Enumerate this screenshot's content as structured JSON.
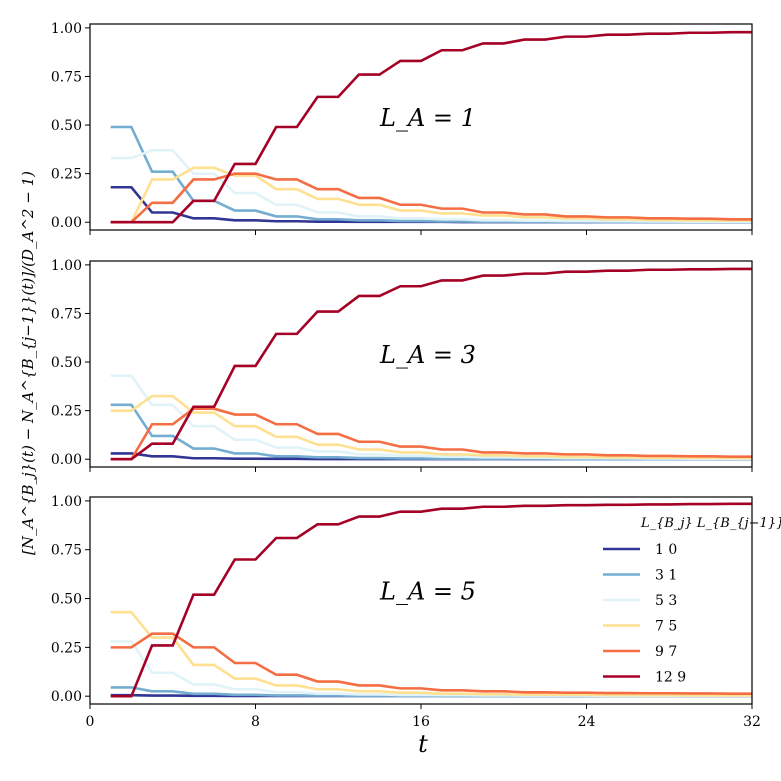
{
  "figure": {
    "xlabel": "t",
    "ylabel": "[N_A^{B_j}(t) − N_A^{B_{j−1}}(t)]/(D_A^2 − 1)",
    "legend_title": "L_{B_j}  L_{B_{j−1}}"
  },
  "colors": {
    "1-0": "#313695",
    "3-1": "#74add1",
    "5-3": "#e0f3f8",
    "7-5": "#fee090",
    "9-7": "#f46d43",
    "12-9": "#a50026"
  },
  "chart_data": [
    {
      "type": "line",
      "annotation": "L_A = 1",
      "xlim": [
        0,
        32
      ],
      "ylim": [
        -0.04,
        1.02
      ],
      "xticks": [
        "0",
        "8",
        "16",
        "24",
        "32"
      ],
      "yticks": [
        "0.00",
        "0.25",
        "0.50",
        "0.75",
        "1.00"
      ],
      "x": [
        1,
        2,
        3,
        4,
        5,
        6,
        7,
        8,
        9,
        10,
        11,
        12,
        13,
        14,
        15,
        16,
        17,
        18,
        19,
        20,
        21,
        22,
        23,
        24,
        25,
        26,
        27,
        28,
        29,
        30,
        31,
        32
      ],
      "series": [
        {
          "name": "1 0",
          "key": "1-0",
          "values": [
            0.18,
            0.18,
            0.05,
            0.05,
            0.02,
            0.02,
            0.01,
            0.01,
            0.005,
            0.005,
            0.003,
            0.003,
            0.002,
            0.002,
            0.002,
            0.002,
            0.002,
            0.001,
            0.001,
            0.001,
            0.001,
            0.001,
            0.001,
            0.001,
            0.001,
            0.001,
            0.001,
            0.001,
            0.001,
            0.001,
            0.001,
            0.001
          ]
        },
        {
          "name": "3 1",
          "key": "3-1",
          "values": [
            0.49,
            0.49,
            0.26,
            0.26,
            0.11,
            0.11,
            0.06,
            0.06,
            0.03,
            0.03,
            0.015,
            0.015,
            0.01,
            0.01,
            0.006,
            0.006,
            0.004,
            0.004,
            0.003,
            0.003,
            0.002,
            0.002,
            0.002,
            0.002,
            0.001,
            0.001,
            0.001,
            0.001,
            0.001,
            0.001,
            0.001,
            0.001
          ]
        },
        {
          "name": "5 3",
          "key": "5-3",
          "values": [
            0.33,
            0.33,
            0.37,
            0.37,
            0.25,
            0.25,
            0.15,
            0.15,
            0.09,
            0.09,
            0.05,
            0.05,
            0.03,
            0.03,
            0.02,
            0.02,
            0.015,
            0.015,
            0.01,
            0.01,
            0.008,
            0.008,
            0.006,
            0.006,
            0.005,
            0.005,
            0.004,
            0.004,
            0.003,
            0.003,
            0.003,
            0.003
          ]
        },
        {
          "name": "7 5",
          "key": "7-5",
          "values": [
            0.0,
            0.0,
            0.22,
            0.22,
            0.28,
            0.28,
            0.24,
            0.24,
            0.17,
            0.17,
            0.12,
            0.12,
            0.09,
            0.09,
            0.06,
            0.06,
            0.045,
            0.045,
            0.035,
            0.035,
            0.025,
            0.025,
            0.02,
            0.02,
            0.015,
            0.015,
            0.012,
            0.012,
            0.01,
            0.01,
            0.009,
            0.009
          ]
        },
        {
          "name": "9 7",
          "key": "9-7",
          "values": [
            0.0,
            0.0,
            0.1,
            0.1,
            0.22,
            0.22,
            0.25,
            0.25,
            0.22,
            0.22,
            0.17,
            0.17,
            0.125,
            0.125,
            0.09,
            0.09,
            0.07,
            0.07,
            0.05,
            0.05,
            0.04,
            0.04,
            0.03,
            0.03,
            0.025,
            0.025,
            0.02,
            0.02,
            0.018,
            0.018,
            0.015,
            0.015
          ]
        },
        {
          "name": "12 9",
          "key": "12-9",
          "values": [
            0.0,
            0.0,
            0.0,
            0.0,
            0.11,
            0.11,
            0.3,
            0.3,
            0.49,
            0.49,
            0.645,
            0.645,
            0.76,
            0.76,
            0.83,
            0.83,
            0.885,
            0.885,
            0.92,
            0.92,
            0.94,
            0.94,
            0.955,
            0.955,
            0.965,
            0.965,
            0.97,
            0.97,
            0.975,
            0.975,
            0.978,
            0.978
          ]
        }
      ]
    },
    {
      "type": "line",
      "annotation": "L_A = 3",
      "xlim": [
        0,
        32
      ],
      "ylim": [
        -0.04,
        1.02
      ],
      "xticks": [
        "0",
        "8",
        "16",
        "24",
        "32"
      ],
      "yticks": [
        "0.00",
        "0.25",
        "0.50",
        "0.75",
        "1.00"
      ],
      "x": [
        1,
        2,
        3,
        4,
        5,
        6,
        7,
        8,
        9,
        10,
        11,
        12,
        13,
        14,
        15,
        16,
        17,
        18,
        19,
        20,
        21,
        22,
        23,
        24,
        25,
        26,
        27,
        28,
        29,
        30,
        31,
        32
      ],
      "series": [
        {
          "name": "1 0",
          "key": "1-0",
          "values": [
            0.03,
            0.03,
            0.015,
            0.015,
            0.005,
            0.005,
            0.003,
            0.003,
            0.002,
            0.002,
            0.001,
            0.001,
            0.001,
            0.001,
            0.001,
            0.001,
            0.001,
            0.001,
            0.001,
            0.001,
            0.001,
            0.001,
            0.001,
            0.001,
            0.001,
            0.001,
            0.001,
            0.001,
            0.001,
            0.001,
            0.001,
            0.001
          ]
        },
        {
          "name": "3 1",
          "key": "3-1",
          "values": [
            0.28,
            0.28,
            0.12,
            0.12,
            0.055,
            0.055,
            0.03,
            0.03,
            0.015,
            0.015,
            0.01,
            0.01,
            0.006,
            0.006,
            0.004,
            0.004,
            0.003,
            0.003,
            0.002,
            0.002,
            0.002,
            0.002,
            0.001,
            0.001,
            0.001,
            0.001,
            0.001,
            0.001,
            0.001,
            0.001,
            0.001,
            0.001
          ]
        },
        {
          "name": "5 3",
          "key": "5-3",
          "values": [
            0.43,
            0.43,
            0.28,
            0.28,
            0.17,
            0.17,
            0.1,
            0.1,
            0.06,
            0.06,
            0.04,
            0.04,
            0.025,
            0.025,
            0.018,
            0.018,
            0.013,
            0.013,
            0.01,
            0.01,
            0.008,
            0.008,
            0.006,
            0.006,
            0.005,
            0.005,
            0.004,
            0.004,
            0.003,
            0.003,
            0.003,
            0.003
          ]
        },
        {
          "name": "7 5",
          "key": "7-5",
          "values": [
            0.25,
            0.25,
            0.325,
            0.325,
            0.24,
            0.24,
            0.17,
            0.17,
            0.115,
            0.115,
            0.075,
            0.075,
            0.05,
            0.05,
            0.035,
            0.035,
            0.025,
            0.025,
            0.02,
            0.02,
            0.015,
            0.015,
            0.012,
            0.012,
            0.01,
            0.01,
            0.008,
            0.008,
            0.007,
            0.007,
            0.006,
            0.006
          ]
        },
        {
          "name": "9 7",
          "key": "9-7",
          "values": [
            0.0,
            0.0,
            0.18,
            0.18,
            0.26,
            0.26,
            0.23,
            0.23,
            0.18,
            0.18,
            0.13,
            0.13,
            0.09,
            0.09,
            0.065,
            0.065,
            0.05,
            0.05,
            0.035,
            0.035,
            0.03,
            0.03,
            0.025,
            0.025,
            0.02,
            0.02,
            0.017,
            0.017,
            0.015,
            0.015,
            0.013,
            0.013
          ]
        },
        {
          "name": "12 9",
          "key": "12-9",
          "values": [
            0.0,
            0.0,
            0.08,
            0.08,
            0.27,
            0.27,
            0.48,
            0.48,
            0.645,
            0.645,
            0.76,
            0.76,
            0.84,
            0.84,
            0.89,
            0.89,
            0.92,
            0.92,
            0.945,
            0.945,
            0.955,
            0.955,
            0.965,
            0.965,
            0.97,
            0.97,
            0.975,
            0.975,
            0.977,
            0.977,
            0.979,
            0.979
          ]
        }
      ]
    },
    {
      "type": "line",
      "annotation": "L_A = 5",
      "xlim": [
        0,
        32
      ],
      "ylim": [
        -0.04,
        1.02
      ],
      "xticks": [
        "0",
        "8",
        "16",
        "24",
        "32"
      ],
      "yticks": [
        "0.00",
        "0.25",
        "0.50",
        "0.75",
        "1.00"
      ],
      "x": [
        1,
        2,
        3,
        4,
        5,
        6,
        7,
        8,
        9,
        10,
        11,
        12,
        13,
        14,
        15,
        16,
        17,
        18,
        19,
        20,
        21,
        22,
        23,
        24,
        25,
        26,
        27,
        28,
        29,
        30,
        31,
        32
      ],
      "series": [
        {
          "name": "1 0",
          "key": "1-0",
          "values": [
            0.005,
            0.005,
            0.003,
            0.003,
            0.002,
            0.002,
            0.001,
            0.001,
            0.001,
            0.001,
            0.001,
            0.001,
            0.001,
            0.001,
            0.001,
            0.001,
            0.001,
            0.001,
            0.001,
            0.001,
            0.001,
            0.001,
            0.001,
            0.001,
            0.001,
            0.001,
            0.001,
            0.001,
            0.001,
            0.001,
            0.001,
            0.001
          ]
        },
        {
          "name": "3 1",
          "key": "3-1",
          "values": [
            0.045,
            0.045,
            0.025,
            0.025,
            0.012,
            0.012,
            0.007,
            0.007,
            0.004,
            0.004,
            0.003,
            0.003,
            0.002,
            0.002,
            0.001,
            0.001,
            0.001,
            0.001,
            0.001,
            0.001,
            0.001,
            0.001,
            0.001,
            0.001,
            0.001,
            0.001,
            0.001,
            0.001,
            0.001,
            0.001,
            0.001,
            0.001
          ]
        },
        {
          "name": "5 3",
          "key": "5-3",
          "values": [
            0.28,
            0.28,
            0.12,
            0.12,
            0.06,
            0.06,
            0.035,
            0.035,
            0.02,
            0.02,
            0.013,
            0.013,
            0.009,
            0.009,
            0.006,
            0.006,
            0.005,
            0.005,
            0.004,
            0.004,
            0.003,
            0.003,
            0.003,
            0.003,
            0.002,
            0.002,
            0.002,
            0.002,
            0.002,
            0.002,
            0.002,
            0.002
          ]
        },
        {
          "name": "7 5",
          "key": "7-5",
          "values": [
            0.43,
            0.43,
            0.3,
            0.3,
            0.16,
            0.16,
            0.09,
            0.09,
            0.055,
            0.055,
            0.035,
            0.035,
            0.025,
            0.025,
            0.018,
            0.018,
            0.013,
            0.013,
            0.01,
            0.01,
            0.008,
            0.008,
            0.007,
            0.007,
            0.006,
            0.006,
            0.005,
            0.005,
            0.004,
            0.004,
            0.004,
            0.004
          ]
        },
        {
          "name": "9 7",
          "key": "9-7",
          "values": [
            0.25,
            0.25,
            0.32,
            0.32,
            0.25,
            0.25,
            0.17,
            0.17,
            0.11,
            0.11,
            0.075,
            0.075,
            0.055,
            0.055,
            0.04,
            0.04,
            0.03,
            0.03,
            0.025,
            0.025,
            0.02,
            0.02,
            0.018,
            0.018,
            0.016,
            0.016,
            0.015,
            0.015,
            0.014,
            0.014,
            0.013,
            0.013
          ]
        },
        {
          "name": "12 9",
          "key": "12-9",
          "values": [
            0.0,
            0.0,
            0.26,
            0.26,
            0.52,
            0.52,
            0.7,
            0.7,
            0.81,
            0.81,
            0.88,
            0.88,
            0.92,
            0.92,
            0.945,
            0.945,
            0.96,
            0.96,
            0.97,
            0.97,
            0.975,
            0.975,
            0.978,
            0.978,
            0.98,
            0.98,
            0.982,
            0.982,
            0.984,
            0.984,
            0.985,
            0.985
          ]
        }
      ]
    }
  ]
}
